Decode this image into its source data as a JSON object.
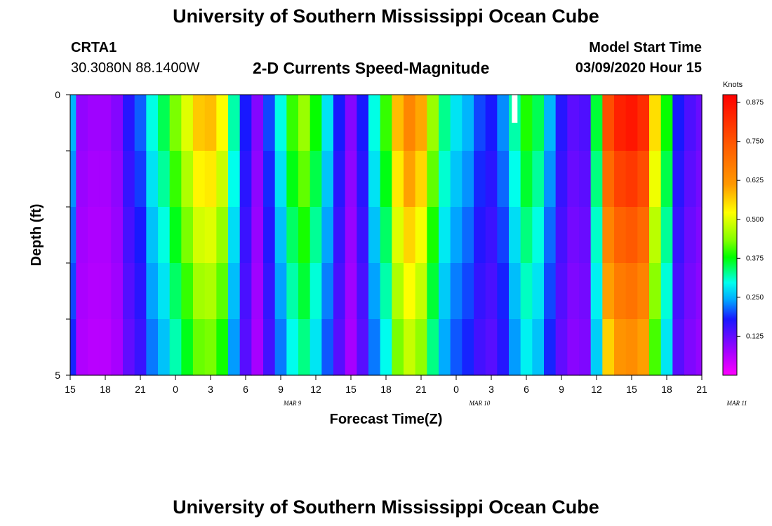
{
  "header": {
    "title": "University of Southern Mississippi Ocean Cube",
    "station": "CRTA1",
    "coords": "30.3080N 88.1400W",
    "chart_title": "2-D Currents Speed-Magnitude",
    "model_start_label": "Model Start Time",
    "model_start_value": "03/09/2020 Hour 15"
  },
  "footer": {
    "title": "University of Southern Mississippi Ocean Cube"
  },
  "chart_data": {
    "type": "heatmap",
    "title": "2-D Currents Speed-Magnitude",
    "xlabel": "Forecast Time(Z)",
    "ylabel": "Depth (ft)",
    "y_tick_labels": [
      "0",
      "5"
    ],
    "ylim": [
      0,
      5
    ],
    "x_tick_labels": [
      "15",
      "18",
      "21",
      "0",
      "3",
      "6",
      "9",
      "12",
      "15",
      "18",
      "21",
      "0",
      "3",
      "6",
      "9",
      "12",
      "15",
      "18",
      "21"
    ],
    "date_labels": [
      {
        "text": "MAR 9",
        "at_hour": 19
      },
      {
        "text": "MAR 10",
        "at_hour": 35
      },
      {
        "text": "MAR 11",
        "at_hour": 57
      }
    ],
    "x_range_hours_from_start": [
      0,
      54
    ],
    "colorbar": {
      "units": "Knots",
      "range": [
        0,
        0.9
      ],
      "ticks": [
        "0.875",
        "0.750",
        "0.625",
        "0.500",
        "0.375",
        "0.250",
        "0.125"
      ]
    },
    "depth_levels": 5,
    "surface_speed_by_hour": [
      0.25,
      0.09,
      0.08,
      0.08,
      0.1,
      0.17,
      0.21,
      0.3,
      0.35,
      0.43,
      0.5,
      0.57,
      0.58,
      0.52,
      0.32,
      0.18,
      0.1,
      0.2,
      0.3,
      0.4,
      0.45,
      0.38,
      0.28,
      0.18,
      0.1,
      0.18,
      0.3,
      0.4,
      0.58,
      0.65,
      0.6,
      0.45,
      0.33,
      0.28,
      0.25,
      0.2,
      0.18,
      0.23,
      0.32,
      0.39,
      0.35,
      0.25,
      0.17,
      0.13,
      0.14,
      0.36,
      0.76,
      0.84,
      0.86,
      0.82,
      0.55,
      0.38,
      0.18,
      0.14,
      0.12
    ],
    "depth_factors": [
      1.0,
      0.93,
      0.86,
      0.8,
      0.74
    ],
    "missing_cells": [
      {
        "hour": 38,
        "depth_level": 0
      }
    ]
  }
}
